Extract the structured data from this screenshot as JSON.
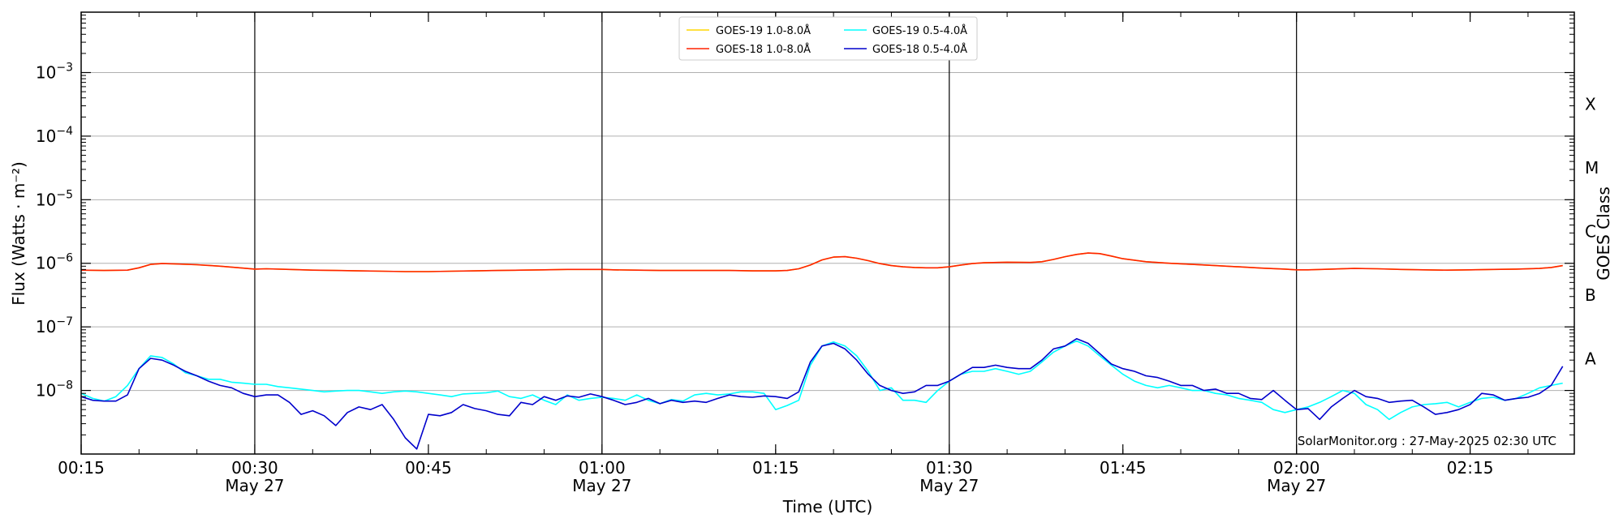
{
  "chart_data": {
    "type": "line",
    "xlabel": "Time (UTC)",
    "ylabel": "Flux (Watts · m⁻²)",
    "y2label": "GOES Class",
    "xlim": [
      15,
      144
    ],
    "ylim_log10": [
      -9,
      -2.05
    ],
    "y_scale": "log",
    "grid": "horizontal",
    "legend_position": "top-center",
    "credit": "SolarMonitor.org : 27-May-2025 02:30 UTC",
    "x_ticks": [
      {
        "value": 15,
        "label": "00:15",
        "sub": ""
      },
      {
        "value": 30,
        "label": "00:30",
        "sub": "May 27"
      },
      {
        "value": 45,
        "label": "00:45",
        "sub": ""
      },
      {
        "value": 60,
        "label": "01:00",
        "sub": "May 27"
      },
      {
        "value": 75,
        "label": "01:15",
        "sub": ""
      },
      {
        "value": 90,
        "label": "01:30",
        "sub": "May 27"
      },
      {
        "value": 105,
        "label": "01:45",
        "sub": ""
      },
      {
        "value": 120,
        "label": "02:00",
        "sub": "May 27"
      },
      {
        "value": 135,
        "label": "02:15",
        "sub": ""
      }
    ],
    "vlines": [
      30,
      60,
      90,
      120
    ],
    "y_ticks": [
      {
        "exp": -8,
        "base": "10",
        "sup": "−8"
      },
      {
        "exp": -7,
        "base": "10",
        "sup": "−7"
      },
      {
        "exp": -6,
        "base": "10",
        "sup": "−6"
      },
      {
        "exp": -5,
        "base": "10",
        "sup": "−5"
      },
      {
        "exp": -4,
        "base": "10",
        "sup": "−4"
      },
      {
        "exp": -3,
        "base": "10",
        "sup": "−3"
      }
    ],
    "goes_classes": [
      {
        "label": "A",
        "exp": -7.5
      },
      {
        "label": "B",
        "exp": -6.5
      },
      {
        "label": "C",
        "exp": -5.5
      },
      {
        "label": "M",
        "exp": -4.5
      },
      {
        "label": "X",
        "exp": -3.5
      }
    ],
    "series": [
      {
        "name": "GOES-19 1.0-8.0Å",
        "color": "#ffd700",
        "x": [
          15,
          17,
          19,
          20,
          21,
          22,
          23,
          25,
          27,
          29,
          30,
          31,
          33,
          35,
          37,
          39,
          41,
          43,
          45,
          47,
          49,
          51,
          53,
          55,
          57,
          59,
          60,
          61,
          63,
          65,
          67,
          69,
          71,
          73,
          75,
          76,
          77,
          78,
          79,
          80,
          81,
          82,
          83,
          84,
          85,
          86,
          87,
          88,
          89,
          90,
          91,
          92,
          93,
          95,
          97,
          98,
          99,
          100,
          101,
          102,
          103,
          104,
          105,
          107,
          109,
          111,
          113,
          115,
          117,
          119,
          120,
          121,
          123,
          125,
          127,
          129,
          131,
          133,
          135,
          137,
          139,
          141,
          142,
          143
        ],
        "values": [
          7.8e-07,
          7.7e-07,
          7.8e-07,
          8.5e-07,
          9.6e-07,
          9.9e-07,
          9.8e-07,
          9.5e-07,
          9e-07,
          8.4e-07,
          8.1e-07,
          8.2e-07,
          8e-07,
          7.8e-07,
          7.7e-07,
          7.6e-07,
          7.5e-07,
          7.4e-07,
          7.4e-07,
          7.5e-07,
          7.6e-07,
          7.7e-07,
          7.8e-07,
          7.9e-07,
          8e-07,
          8e-07,
          8e-07,
          7.9e-07,
          7.8e-07,
          7.7e-07,
          7.7e-07,
          7.7e-07,
          7.7e-07,
          7.6e-07,
          7.6e-07,
          7.7e-07,
          8.2e-07,
          9.4e-07,
          1.13e-06,
          1.25e-06,
          1.27e-06,
          1.2e-06,
          1.1e-06,
          9.9e-07,
          9.2e-07,
          8.8e-07,
          8.6e-07,
          8.5e-07,
          8.5e-07,
          8.8e-07,
          9.4e-07,
          9.9e-07,
          1.02e-06,
          1.04e-06,
          1.03e-06,
          1.06e-06,
          1.15e-06,
          1.27e-06,
          1.38e-06,
          1.45e-06,
          1.42e-06,
          1.3e-06,
          1.18e-06,
          1.06e-06,
          1e-06,
          9.6e-07,
          9.2e-07,
          8.8e-07,
          8.4e-07,
          8.1e-07,
          7.9e-07,
          7.9e-07,
          8.1e-07,
          8.3e-07,
          8.2e-07,
          8e-07,
          7.9e-07,
          7.8e-07,
          7.9e-07,
          8e-07,
          8.1e-07,
          8.3e-07,
          8.6e-07,
          9.2e-07
        ]
      },
      {
        "name": "GOES-18 1.0-8.0Å",
        "color": "#ff2200",
        "x": [
          15,
          17,
          19,
          20,
          21,
          22,
          23,
          25,
          27,
          29,
          30,
          31,
          33,
          35,
          37,
          39,
          41,
          43,
          45,
          47,
          49,
          51,
          53,
          55,
          57,
          59,
          60,
          61,
          63,
          65,
          67,
          69,
          71,
          73,
          75,
          76,
          77,
          78,
          79,
          80,
          81,
          82,
          83,
          84,
          85,
          86,
          87,
          88,
          89,
          90,
          91,
          92,
          93,
          95,
          97,
          98,
          99,
          100,
          101,
          102,
          103,
          104,
          105,
          107,
          109,
          111,
          113,
          115,
          117,
          119,
          120,
          121,
          123,
          125,
          127,
          129,
          131,
          133,
          135,
          137,
          139,
          141,
          142,
          143
        ],
        "values": [
          7.8e-07,
          7.7e-07,
          7.8e-07,
          8.5e-07,
          9.6e-07,
          9.9e-07,
          9.8e-07,
          9.5e-07,
          9e-07,
          8.4e-07,
          8.1e-07,
          8.2e-07,
          8e-07,
          7.8e-07,
          7.7e-07,
          7.6e-07,
          7.5e-07,
          7.4e-07,
          7.4e-07,
          7.5e-07,
          7.6e-07,
          7.7e-07,
          7.8e-07,
          7.9e-07,
          8e-07,
          8e-07,
          8e-07,
          7.9e-07,
          7.8e-07,
          7.7e-07,
          7.7e-07,
          7.7e-07,
          7.7e-07,
          7.6e-07,
          7.6e-07,
          7.7e-07,
          8.2e-07,
          9.4e-07,
          1.13e-06,
          1.25e-06,
          1.27e-06,
          1.2e-06,
          1.1e-06,
          9.9e-07,
          9.2e-07,
          8.8e-07,
          8.6e-07,
          8.5e-07,
          8.5e-07,
          8.8e-07,
          9.4e-07,
          9.9e-07,
          1.02e-06,
          1.04e-06,
          1.03e-06,
          1.06e-06,
          1.15e-06,
          1.27e-06,
          1.38e-06,
          1.45e-06,
          1.42e-06,
          1.3e-06,
          1.18e-06,
          1.06e-06,
          1e-06,
          9.6e-07,
          9.2e-07,
          8.8e-07,
          8.4e-07,
          8.1e-07,
          7.9e-07,
          7.9e-07,
          8.1e-07,
          8.3e-07,
          8.2e-07,
          8e-07,
          7.9e-07,
          7.8e-07,
          7.9e-07,
          8e-07,
          8.1e-07,
          8.3e-07,
          8.6e-07,
          9.2e-07
        ]
      },
      {
        "name": "GOES-19 0.5-4.0Å",
        "color": "#00ffff",
        "x": [
          15,
          16,
          17,
          18,
          19,
          20,
          21,
          22,
          23,
          24,
          25,
          26,
          27,
          28,
          29,
          30,
          31,
          32,
          33,
          34,
          35,
          36,
          37,
          38,
          39,
          40,
          41,
          42,
          43,
          44,
          45,
          46,
          47,
          48,
          49,
          50,
          51,
          52,
          53,
          54,
          55,
          56,
          57,
          58,
          59,
          60,
          61,
          62,
          63,
          64,
          65,
          66,
          67,
          68,
          69,
          70,
          71,
          72,
          73,
          74,
          75,
          76,
          77,
          78,
          79,
          80,
          81,
          82,
          83,
          84,
          85,
          86,
          87,
          88,
          89,
          90,
          91,
          92,
          93,
          94,
          95,
          96,
          97,
          98,
          99,
          100,
          101,
          102,
          103,
          104,
          105,
          106,
          107,
          108,
          109,
          110,
          111,
          112,
          113,
          114,
          115,
          116,
          117,
          118,
          119,
          120,
          121,
          122,
          123,
          124,
          125,
          126,
          127,
          128,
          129,
          130,
          131,
          132,
          133,
          134,
          135,
          136,
          137,
          138,
          139,
          140,
          141,
          142,
          143
        ],
        "values": [
          9e-09,
          7.5e-09,
          6.8e-09,
          8e-09,
          1.2e-08,
          2.2e-08,
          3.5e-08,
          3.3e-08,
          2.6e-08,
          1.9e-08,
          1.7e-08,
          1.5e-08,
          1.5e-08,
          1.35e-08,
          1.3e-08,
          1.25e-08,
          1.25e-08,
          1.15e-08,
          1.1e-08,
          1.05e-08,
          1e-08,
          9.5e-09,
          9.8e-09,
          1e-08,
          1e-08,
          9.5e-09,
          9e-09,
          9.5e-09,
          9.8e-09,
          9.5e-09,
          9e-09,
          8.5e-09,
          8e-09,
          8.8e-09,
          9e-09,
          9.2e-09,
          9.8e-09,
          8e-09,
          7.5e-09,
          8.5e-09,
          7e-09,
          6e-09,
          8.5e-09,
          7e-09,
          7.5e-09,
          7.8e-09,
          7.5e-09,
          7e-09,
          8.5e-09,
          7e-09,
          6.2e-09,
          7.2e-09,
          6.8e-09,
          8.5e-09,
          9e-09,
          8.5e-09,
          8.8e-09,
          9.5e-09,
          9.5e-09,
          9e-09,
          5e-09,
          5.8e-09,
          7e-09,
          2.5e-08,
          5e-08,
          5.8e-08,
          5e-08,
          3.5e-08,
          2e-08,
          1e-08,
          1.1e-08,
          7e-09,
          7e-09,
          6.5e-09,
          1e-08,
          1.4e-08,
          1.8e-08,
          2e-08,
          2e-08,
          2.2e-08,
          2e-08,
          1.8e-08,
          2e-08,
          2.8e-08,
          4e-08,
          5e-08,
          6e-08,
          5e-08,
          3.5e-08,
          2.5e-08,
          1.8e-08,
          1.4e-08,
          1.2e-08,
          1.1e-08,
          1.2e-08,
          1.1e-08,
          1e-08,
          1e-08,
          9e-09,
          8.5e-09,
          7.5e-09,
          7e-09,
          6.5e-09,
          5e-09,
          4.5e-09,
          5e-09,
          5.5e-09,
          6.5e-09,
          8e-09,
          1e-08,
          9e-09,
          6e-09,
          5e-09,
          3.5e-09,
          4.5e-09,
          5.5e-09,
          6e-09,
          6.2e-09,
          6.5e-09,
          5.5e-09,
          6.5e-09,
          7.5e-09,
          7.8e-09,
          7e-09,
          7.5e-09,
          9e-09,
          1.1e-08,
          1.2e-08,
          1.3e-08
        ]
      },
      {
        "name": "GOES-18 0.5-4.0Å",
        "color": "#0000cc",
        "x": [
          15,
          16,
          17,
          18,
          19,
          20,
          21,
          22,
          23,
          24,
          25,
          26,
          27,
          28,
          29,
          30,
          31,
          32,
          33,
          34,
          35,
          36,
          37,
          38,
          39,
          40,
          41,
          42,
          43,
          44,
          45,
          46,
          47,
          48,
          49,
          50,
          51,
          52,
          53,
          54,
          55,
          56,
          57,
          58,
          59,
          60,
          61,
          62,
          63,
          64,
          65,
          66,
          67,
          68,
          69,
          70,
          71,
          72,
          73,
          74,
          75,
          76,
          77,
          78,
          79,
          80,
          81,
          82,
          83,
          84,
          85,
          86,
          87,
          88,
          89,
          90,
          91,
          92,
          93,
          94,
          95,
          96,
          97,
          98,
          99,
          100,
          101,
          102,
          103,
          104,
          105,
          106,
          107,
          108,
          109,
          110,
          111,
          112,
          113,
          114,
          115,
          116,
          117,
          118,
          119,
          120,
          121,
          122,
          123,
          124,
          125,
          126,
          127,
          128,
          129,
          130,
          131,
          132,
          133,
          134,
          135,
          136,
          137,
          138,
          139,
          140,
          141,
          142,
          143
        ],
        "values": [
          8e-09,
          7e-09,
          6.8e-09,
          6.8e-09,
          8.5e-09,
          2.2e-08,
          3.2e-08,
          3e-08,
          2.5e-08,
          2e-08,
          1.7e-08,
          1.4e-08,
          1.2e-08,
          1.1e-08,
          9e-09,
          8e-09,
          8.5e-09,
          8.5e-09,
          6.5e-09,
          4.2e-09,
          4.8e-09,
          4e-09,
          2.8e-09,
          4.5e-09,
          5.5e-09,
          5e-09,
          6e-09,
          3.5e-09,
          1.8e-09,
          1.2e-09,
          4.2e-09,
          4e-09,
          4.5e-09,
          6e-09,
          5.2e-09,
          4.8e-09,
          4.2e-09,
          4e-09,
          6.5e-09,
          6e-09,
          8e-09,
          7e-09,
          8.2e-09,
          7.8e-09,
          8.8e-09,
          8e-09,
          7e-09,
          6e-09,
          6.5e-09,
          7.5e-09,
          6.2e-09,
          7e-09,
          6.5e-09,
          6.8e-09,
          6.5e-09,
          7.5e-09,
          8.5e-09,
          8e-09,
          7.8e-09,
          8.2e-09,
          8e-09,
          7.5e-09,
          9.5e-09,
          2.8e-08,
          5e-08,
          5.5e-08,
          4.5e-08,
          3e-08,
          1.8e-08,
          1.2e-08,
          1e-08,
          9e-09,
          9.5e-09,
          1.2e-08,
          1.2e-08,
          1.4e-08,
          1.8e-08,
          2.3e-08,
          2.3e-08,
          2.5e-08,
          2.3e-08,
          2.2e-08,
          2.2e-08,
          3e-08,
          4.5e-08,
          5e-08,
          6.5e-08,
          5.5e-08,
          3.8e-08,
          2.6e-08,
          2.2e-08,
          2e-08,
          1.7e-08,
          1.6e-08,
          1.4e-08,
          1.2e-08,
          1.2e-08,
          1e-08,
          1.05e-08,
          9e-09,
          9e-09,
          7.5e-09,
          7.2e-09,
          1e-08,
          7e-09,
          5e-09,
          5.2e-09,
          3.5e-09,
          5.5e-09,
          7.5e-09,
          1e-08,
          8e-09,
          7.5e-09,
          6.5e-09,
          6.8e-09,
          7e-09,
          5.5e-09,
          4.2e-09,
          4.5e-09,
          5e-09,
          6e-09,
          9e-09,
          8.5e-09,
          7e-09,
          7.5e-09,
          7.8e-09,
          9e-09,
          1.2e-08,
          2.4e-08
        ]
      }
    ]
  }
}
